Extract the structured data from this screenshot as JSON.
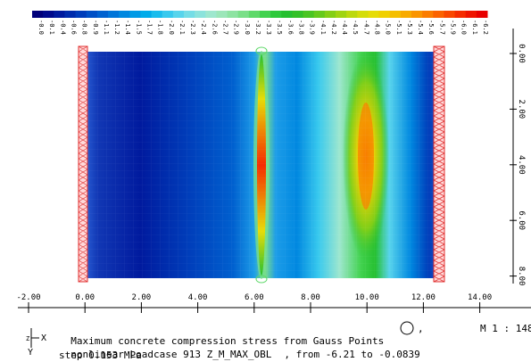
{
  "legend": {
    "labels": [
      "-0.0",
      "-0.1",
      "-0.4",
      "-0.6",
      "-0.8",
      "-0.9",
      "-1.1",
      "-1.2",
      "-1.4",
      "-1.5",
      "-1.7",
      "-1.8",
      "-2.0",
      "-2.1",
      "-2.3",
      "-2.4",
      "-2.6",
      "-2.7",
      "-2.9",
      "-3.0",
      "-3.2",
      "-3.3",
      "-3.5",
      "-3.6",
      "-3.8",
      "-3.9",
      "-4.1",
      "-4.2",
      "-4.4",
      "-4.5",
      "-4.7",
      "-4.8",
      "-5.0",
      "-5.1",
      "-5.3",
      "-5.4",
      "-5.6",
      "-5.7",
      "-5.9",
      "-6.0",
      "-6.1",
      "-6.2"
    ],
    "colors": [
      "#00007a",
      "#000a8c",
      "#001a9e",
      "#002cac",
      "#003dba",
      "#0050c6",
      "#0062d0",
      "#0075d9",
      "#0088e0",
      "#009ae6",
      "#00abea",
      "#19bced",
      "#38c9ee",
      "#58d4ec",
      "#75dde6",
      "#8ce3dc",
      "#9ee7ce",
      "#9ce6b9",
      "#8ee3a2",
      "#7adf88",
      "#5fd96a",
      "#42d24f",
      "#2ec93c",
      "#26c030",
      "#33c128",
      "#4ac522",
      "#66ca1c",
      "#84cf16",
      "#a0d412",
      "#bcd90e",
      "#d4dd0a",
      "#e6dc08",
      "#f0d000",
      "#f5bf00",
      "#f8ab00",
      "#fa9500",
      "#fb7d00",
      "#fb6300",
      "#f94800",
      "#f52d00",
      "#ef1500",
      "#e80000"
    ]
  },
  "view": {
    "x_ticks": [
      "-2.00",
      "0.00",
      "2.00",
      "4.00",
      "6.00",
      "8.00",
      "10.00",
      "12.00",
      "14.00"
    ],
    "y_ticks": [
      "0.00",
      "2.00",
      "4.00",
      "6.00",
      "8.00"
    ]
  },
  "caption": {
    "line1": "Maximum concrete compression stress from Gauss Points",
    "line1_suffix": ",",
    "line2": "nonlinear Loadcase 913 Z_M_MAX_OBL",
    "line2_range": ", from -6.21 to -0.0839",
    "line3": "step 0.153 MPa",
    "scale": "M 1 : 148",
    "axis_x": "X",
    "axis_z": "Z",
    "axis_y": "Y"
  }
}
